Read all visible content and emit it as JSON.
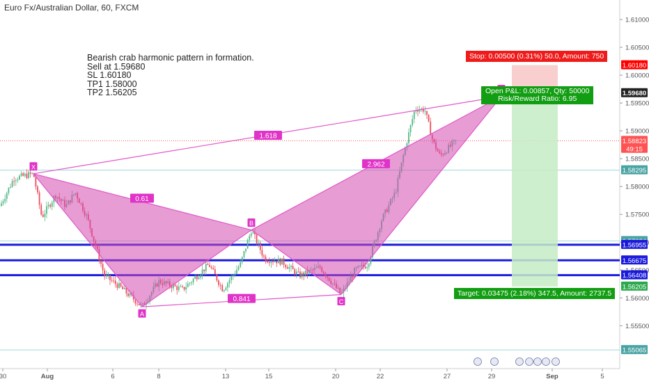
{
  "chart": {
    "title": "Euro Fx/Australian Dollar, 60, FXCM",
    "note_lines": [
      "Bearish crab harmonic pattern in formation.",
      "Sell at 1.59680",
      "SL 1.60180",
      "TP1 1.58000",
      "TP2 1.56205"
    ],
    "stop_label": "Stop: 0.00500 (0.31%) 50.0, Amount: 750",
    "pnl_label": "Open P&L: 0.00857, Qty: 50000",
    "rr_label": "Risk/Reward Ratio: 6.95",
    "target_label": "Target: 0.03475 (2.18%) 347.5, Amount: 2737.5"
  },
  "chart_data": {
    "type": "candlestick",
    "symbol": "EUR/AUD",
    "timeframe": "60",
    "x_ticks": [
      "30",
      "Aug",
      "6",
      "8",
      "13",
      "15",
      "20",
      "22",
      "27",
      "29",
      "Sep",
      "5"
    ],
    "y_ticks": [
      "1.61000",
      "1.60500",
      "1.60000",
      "1.59500",
      "1.59000",
      "1.58500",
      "1.58000",
      "1.57500",
      "1.57000",
      "1.56500",
      "1.56000",
      "1.55500"
    ],
    "ylim": [
      1.5473,
      1.6135
    ],
    "price_labels": [
      {
        "text": "1.60180",
        "value": 1.6018,
        "color": "#ff0000"
      },
      {
        "text": "1.59680",
        "value": 1.5968,
        "color": "#222222"
      },
      {
        "text": "1.58823",
        "value": 1.58823,
        "color": "#ff5252"
      },
      {
        "text": "49:15",
        "value": 1.5868,
        "color": "#ff5252"
      },
      {
        "text": "1.58295",
        "value": 1.58295,
        "color": "#4aa3a3"
      },
      {
        "text": "1.57024",
        "value": 1.57024,
        "color": "#4aa3a3"
      },
      {
        "text": "1.56955",
        "value": 1.56955,
        "color": "#1a1adb"
      },
      {
        "text": "1.56675",
        "value": 1.56675,
        "color": "#1a1adb"
      },
      {
        "text": "1.56408",
        "value": 1.56408,
        "color": "#1a1adb"
      },
      {
        "text": "1.56205",
        "value": 1.56205,
        "color": "#2ca94f"
      },
      {
        "text": "1.55065",
        "value": 1.55065,
        "color": "#4aa3a3"
      }
    ],
    "horizontal_levels": [
      {
        "value": 1.56955,
        "color": "#1a1adb",
        "width": 3
      },
      {
        "value": 1.56675,
        "color": "#1a1adb",
        "width": 3
      },
      {
        "value": 1.56408,
        "color": "#1a1adb",
        "width": 3
      },
      {
        "value": 1.58295,
        "color": "#9fd6d6",
        "width": 1
      },
      {
        "value": 1.57024,
        "color": "#9fd6d6",
        "width": 1
      },
      {
        "value": 1.55065,
        "color": "#9fd6d6",
        "width": 1
      }
    ],
    "pattern": {
      "points": [
        {
          "label": "X",
          "x": 48,
          "price": 1.5823
        },
        {
          "label": "A",
          "x": 204,
          "price": 1.5584
        },
        {
          "label": "B",
          "x": 361,
          "price": 1.5722
        },
        {
          "label": "C",
          "x": 490,
          "price": 1.5606
        },
        {
          "label": "D",
          "x": 720,
          "price": 1.5962
        }
      ],
      "ratios": [
        {
          "text": "0.61",
          "x": 204,
          "price": 1.5779
        },
        {
          "text": "1.618",
          "x": 385,
          "price": 1.5892
        },
        {
          "text": "0.841",
          "x": 347,
          "price": 1.5599
        },
        {
          "text": "2.962",
          "x": 540,
          "price": 1.5841
        }
      ]
    },
    "position": {
      "type": "short",
      "entry": 1.5968,
      "stop": 1.6018,
      "target": 1.56205
    },
    "current_price": 1.58823
  }
}
